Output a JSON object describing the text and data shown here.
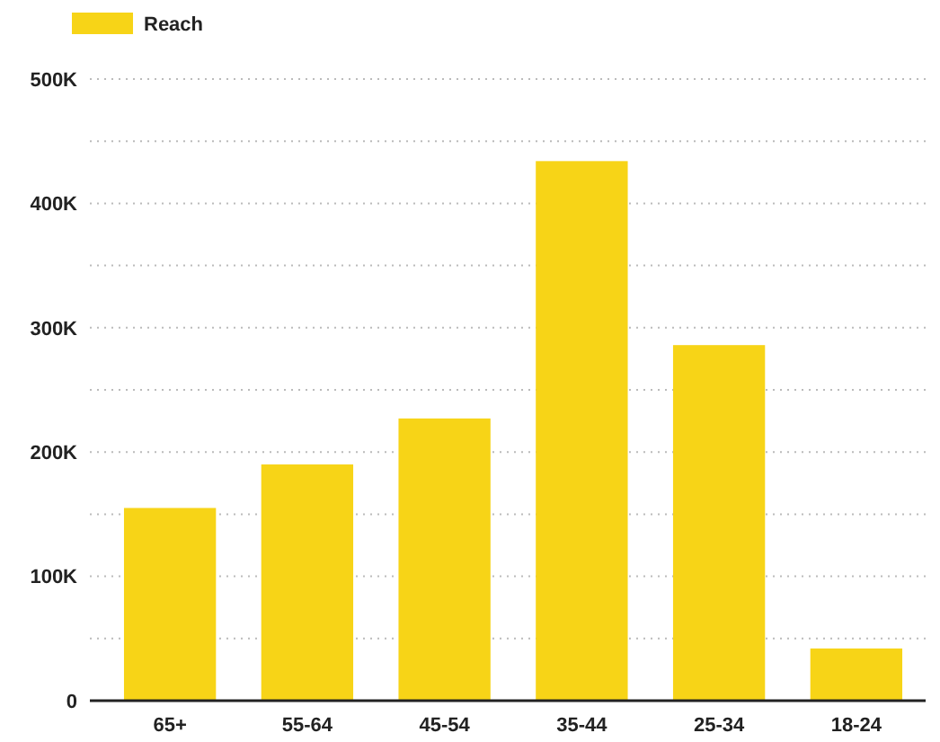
{
  "chart_data": {
    "type": "bar",
    "categories": [
      "65+",
      "55-64",
      "45-54",
      "35-44",
      "25-34",
      "18-24"
    ],
    "series": [
      {
        "name": "Reach",
        "color": "#f7d417",
        "values": [
          155000,
          190000,
          227000,
          434000,
          286000,
          42000
        ]
      }
    ],
    "ylim": [
      0,
      500000
    ],
    "yticks": [
      {
        "value": 0,
        "label": "0"
      },
      {
        "value": 50000,
        "label": null
      },
      {
        "value": 100000,
        "label": "100K"
      },
      {
        "value": 150000,
        "label": null
      },
      {
        "value": 200000,
        "label": "200K"
      },
      {
        "value": 250000,
        "label": null
      },
      {
        "value": 300000,
        "label": "300K"
      },
      {
        "value": 350000,
        "label": null
      },
      {
        "value": 400000,
        "label": "400K"
      },
      {
        "value": 450000,
        "label": null
      },
      {
        "value": 500000,
        "label": "500K"
      }
    ],
    "grid": "y",
    "legend": "top left"
  }
}
